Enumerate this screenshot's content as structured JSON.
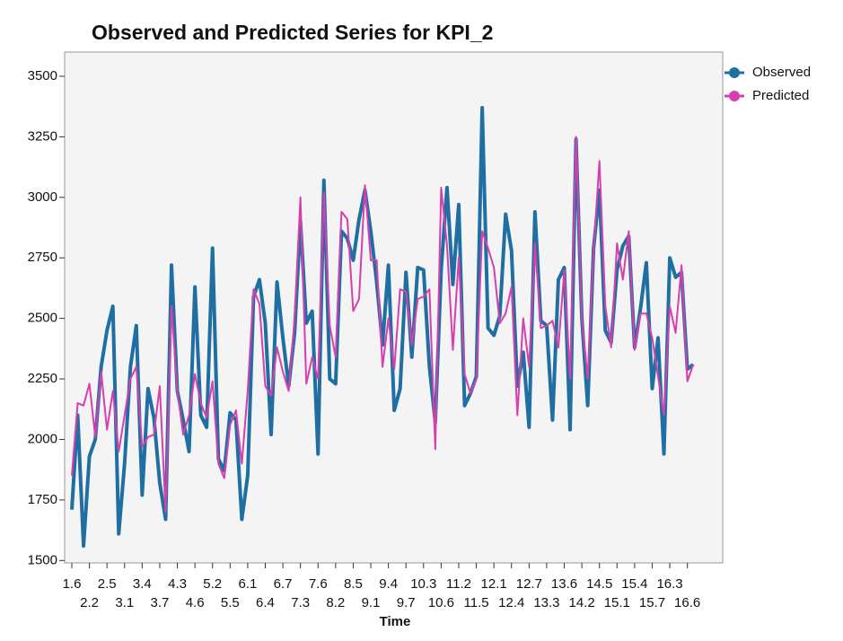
{
  "chart_data": {
    "type": "line",
    "title": "Observed and Predicted Series for KPI_2",
    "x_label": "Time",
    "categories": [
      "1.6",
      null,
      null,
      "2.2",
      null,
      null,
      "2.5",
      null,
      null,
      "3.1",
      null,
      null,
      "3.4",
      null,
      null,
      "3.7",
      null,
      null,
      "4.3",
      null,
      null,
      "4.6",
      null,
      null,
      "5.2",
      null,
      null,
      "5.5",
      null,
      null,
      "6.1",
      null,
      null,
      "6.4",
      null,
      null,
      "6.7",
      null,
      null,
      "7.3",
      null,
      null,
      "7.6",
      null,
      null,
      "8.2",
      null,
      null,
      "8.5",
      null,
      null,
      "9.1",
      null,
      null,
      "9.4",
      null,
      null,
      "9.7",
      null,
      null,
      "10.3",
      null,
      null,
      "10.6",
      null,
      null,
      "11.2",
      null,
      null,
      "11.5",
      null,
      null,
      "12.1",
      null,
      null,
      "12.4",
      null,
      null,
      "12.7",
      null,
      null,
      "13.3",
      null,
      null,
      "13.6",
      null,
      null,
      "14.2",
      null,
      null,
      "14.5",
      null,
      null,
      "15.1",
      null,
      null,
      "15.4",
      null,
      null,
      "15.7",
      null,
      null,
      "16.3",
      null,
      null,
      "16.6",
      null
    ],
    "series": [
      {
        "name": "Observed",
        "color": "#1f6fa3",
        "values": [
          1710,
          2100,
          1560,
          1930,
          2000,
          2300,
          2450,
          2550,
          1610,
          1900,
          2300,
          2470,
          1770,
          2210,
          2090,
          1820,
          1670,
          2720,
          2200,
          2080,
          1950,
          2630,
          2100,
          2050,
          2790,
          1920,
          1870,
          2110,
          2080,
          1670,
          1850,
          2590,
          2660,
          2480,
          2020,
          2650,
          2420,
          2220,
          2440,
          2900,
          2480,
          2530,
          1940,
          3070,
          2250,
          2230,
          2860,
          2830,
          2740,
          2910,
          3030,
          2860,
          2650,
          2390,
          2720,
          2120,
          2210,
          2690,
          2340,
          2710,
          2700,
          2300,
          2070,
          2700,
          3040,
          2640,
          2970,
          2140,
          2190,
          2260,
          3370,
          2460,
          2430,
          2510,
          2930,
          2780,
          2220,
          2360,
          2050,
          2940,
          2490,
          2470,
          2080,
          2660,
          2710,
          2040,
          3240,
          2500,
          2140,
          2790,
          3030,
          2450,
          2400,
          2700,
          2800,
          2840,
          2380,
          2540,
          2730,
          2210,
          2420,
          1940,
          2750,
          2670,
          2690,
          2290,
          2310
        ]
      },
      {
        "name": "Predicted",
        "color": "#d63fae",
        "values": [
          1850,
          2150,
          2140,
          2230,
          2010,
          2280,
          2040,
          2200,
          1950,
          2100,
          2250,
          2300,
          1970,
          2010,
          2020,
          2220,
          1700,
          2550,
          2200,
          2020,
          2100,
          2270,
          2150,
          2090,
          2240,
          1900,
          1840,
          2060,
          2120,
          1900,
          2200,
          2620,
          2560,
          2220,
          2180,
          2380,
          2280,
          2200,
          2500,
          3000,
          2230,
          2340,
          2250,
          3020,
          2470,
          2340,
          2940,
          2910,
          2530,
          2580,
          3050,
          2740,
          2740,
          2300,
          2500,
          2290,
          2620,
          2610,
          2390,
          2580,
          2590,
          2620,
          1960,
          3040,
          2800,
          2370,
          2750,
          2270,
          2190,
          2250,
          2860,
          2790,
          2710,
          2480,
          2520,
          2630,
          2100,
          2500,
          2300,
          2810,
          2460,
          2470,
          2490,
          2380,
          2700,
          2250,
          3250,
          2500,
          2250,
          2780,
          3150,
          2550,
          2380,
          2810,
          2660,
          2860,
          2370,
          2520,
          2520,
          2420,
          2260,
          2100,
          2550,
          2440,
          2720,
          2240,
          2310
        ]
      }
    ],
    "ylim": [
      1490,
      3600
    ],
    "yticks": [
      1500,
      1750,
      2000,
      2250,
      2500,
      2750,
      3000,
      3250,
      3500
    ],
    "legend": "right"
  }
}
